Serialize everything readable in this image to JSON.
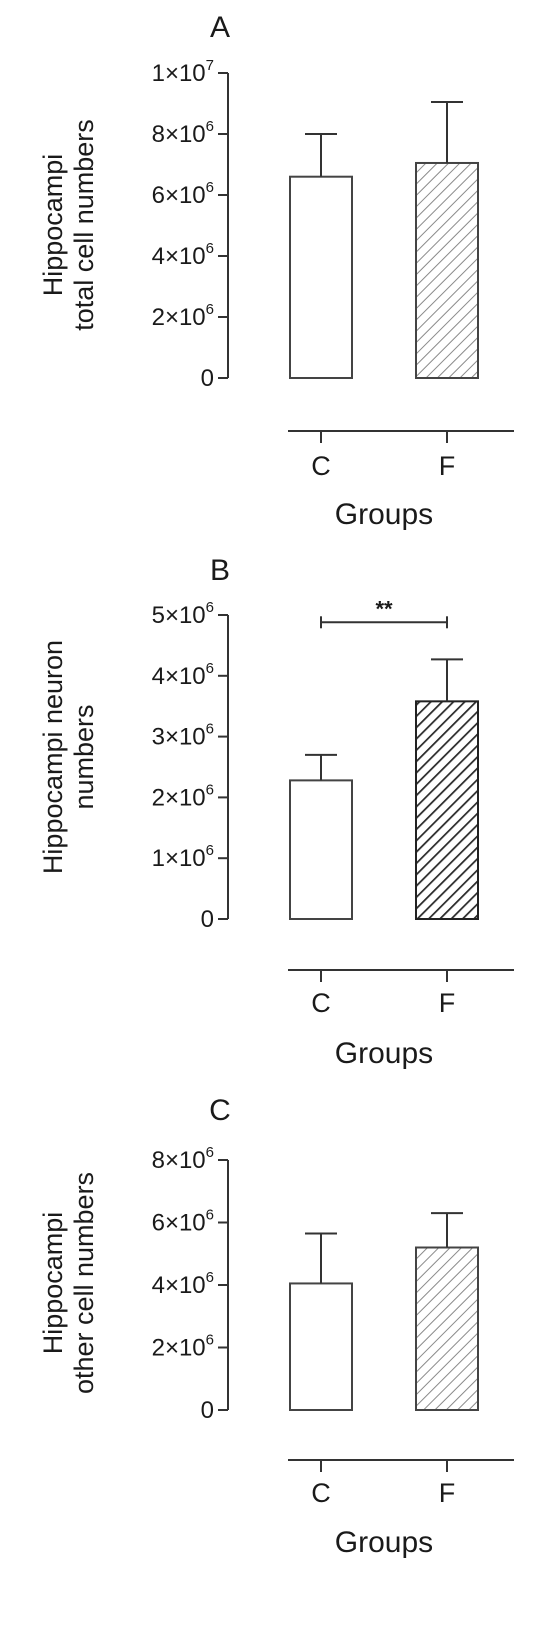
{
  "chart_data": [
    {
      "type": "bar",
      "panel_label": "A",
      "categories": [
        "C",
        "F"
      ],
      "values": [
        6600000,
        7050000
      ],
      "error_upper": [
        8000000,
        9050000
      ],
      "ylabel_lines": [
        "Hippocampi",
        "total cell numbers"
      ],
      "xlabel": "Groups",
      "ylim": [
        0,
        10000000
      ],
      "yticks": [
        {
          "value": 0,
          "base": "0",
          "exp": ""
        },
        {
          "value": 2000000,
          "base": "2×10",
          "exp": "6"
        },
        {
          "value": 4000000,
          "base": "4×10",
          "exp": "6"
        },
        {
          "value": 6000000,
          "base": "6×10",
          "exp": "6"
        },
        {
          "value": 8000000,
          "base": "8×10",
          "exp": "6"
        },
        {
          "value": 10000000,
          "base": "1×10",
          "exp": "7"
        }
      ],
      "bar_styles": [
        "plain",
        "hatch-light"
      ],
      "significance": null
    },
    {
      "type": "bar",
      "panel_label": "B",
      "categories": [
        "C",
        "F"
      ],
      "values": [
        2280000,
        3580000
      ],
      "error_upper": [
        2700000,
        4270000
      ],
      "ylabel_lines": [
        "Hippocampi neuron",
        "numbers"
      ],
      "xlabel": "Groups",
      "ylim": [
        0,
        5000000
      ],
      "yticks": [
        {
          "value": 0,
          "base": "0",
          "exp": ""
        },
        {
          "value": 1000000,
          "base": "1×10",
          "exp": "6"
        },
        {
          "value": 2000000,
          "base": "2×10",
          "exp": "6"
        },
        {
          "value": 3000000,
          "base": "3×10",
          "exp": "6"
        },
        {
          "value": 4000000,
          "base": "4×10",
          "exp": "6"
        },
        {
          "value": 5000000,
          "base": "5×10",
          "exp": "6"
        }
      ],
      "bar_styles": [
        "plain",
        "hatch-dark"
      ],
      "significance": {
        "label": "**",
        "value": 4880000
      }
    },
    {
      "type": "bar",
      "panel_label": "C",
      "categories": [
        "C",
        "F"
      ],
      "values": [
        4050000,
        5200000
      ],
      "error_upper": [
        5650000,
        6300000
      ],
      "ylabel_lines": [
        "Hippocampi",
        "other cell numbers"
      ],
      "xlabel": "Groups",
      "ylim": [
        0,
        8000000
      ],
      "yticks": [
        {
          "value": 0,
          "base": "0",
          "exp": ""
        },
        {
          "value": 2000000,
          "base": "2×10",
          "exp": "6"
        },
        {
          "value": 4000000,
          "base": "4×10",
          "exp": "6"
        },
        {
          "value": 6000000,
          "base": "6×10",
          "exp": "6"
        },
        {
          "value": 8000000,
          "base": "8×10",
          "exp": "6"
        }
      ],
      "bar_styles": [
        "plain",
        "hatch-light"
      ],
      "significance": null
    }
  ],
  "colors": {
    "axis": "#333333",
    "bar_fill": "#ffffff",
    "hatch_light": "#8a8a8a",
    "hatch_dark": "#2a2a2a"
  }
}
